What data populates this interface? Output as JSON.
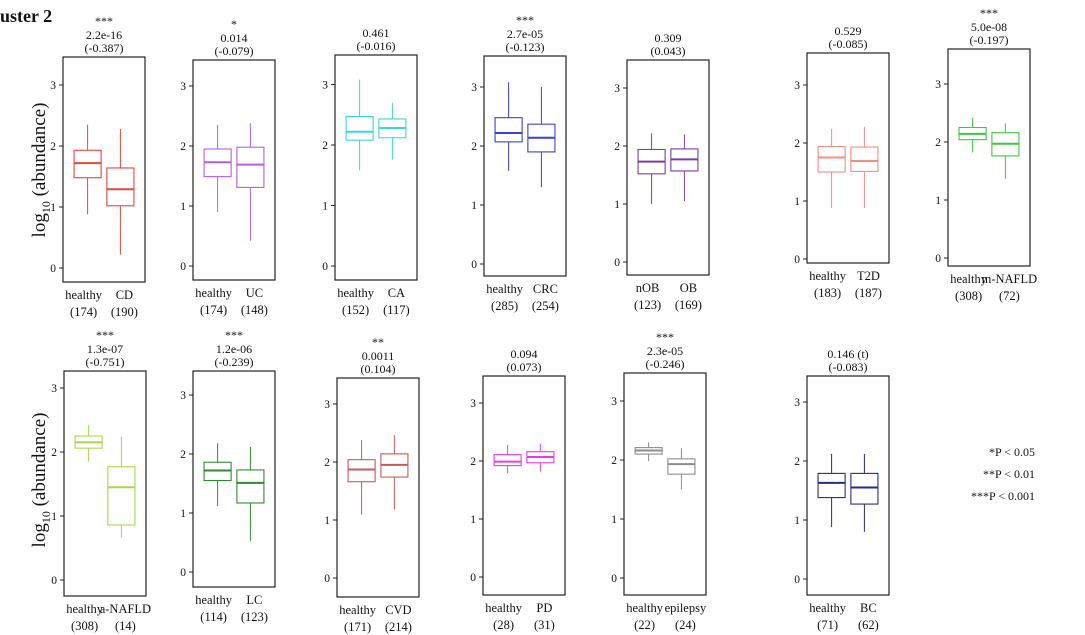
{
  "figure_label": "uster 2",
  "y_label_main": "log",
  "y_label_sub": "10",
  "y_label_rest": " (abundance)",
  "legend": [
    "*P < 0.05",
    "**P < 0.01",
    "***P < 0.001"
  ],
  "chart_data": [
    {
      "type": "box",
      "panel": 1,
      "sig": "***",
      "pvalue": "2.2e-16",
      "effect": "(-0.387)",
      "ylim": [
        -0.1,
        3.5
      ],
      "yticks": [
        0,
        1,
        2,
        3
      ],
      "color": "#e8453c",
      "groups": [
        {
          "name": "healthy",
          "n": "(174)",
          "q1": 1.48,
          "median": 1.72,
          "q3": 1.93,
          "min": 0.88,
          "max": 2.35
        },
        {
          "name": "CD",
          "n": "(190)",
          "q1": 1.02,
          "median": 1.29,
          "q3": 1.64,
          "min": 0.22,
          "max": 2.28
        }
      ]
    },
    {
      "type": "box",
      "panel": 2,
      "sig": "*",
      "pvalue": "0.014",
      "effect": "(-0.079)",
      "ylim": [
        -0.1,
        3.5
      ],
      "yticks": [
        0,
        1,
        2,
        3
      ],
      "color": "#b45ee8",
      "groups": [
        {
          "name": "healthy",
          "n": "(174)",
          "q1": 1.49,
          "median": 1.73,
          "q3": 1.95,
          "min": 0.9,
          "max": 2.35
        },
        {
          "name": "UC",
          "n": "(148)",
          "q1": 1.31,
          "median": 1.69,
          "q3": 1.98,
          "min": 0.42,
          "max": 2.38
        }
      ]
    },
    {
      "type": "box",
      "panel": 3,
      "sig": "",
      "pvalue": "0.461",
      "effect": "(-0.016)",
      "ylim": [
        -0.1,
        3.5
      ],
      "yticks": [
        0,
        1,
        2,
        3
      ],
      "color": "#3cd8d8",
      "groups": [
        {
          "name": "healthy",
          "n": "(152)",
          "q1": 2.08,
          "median": 2.22,
          "q3": 2.47,
          "min": 1.58,
          "max": 3.08
        },
        {
          "name": "CA",
          "n": "(117)",
          "q1": 2.12,
          "median": 2.28,
          "q3": 2.43,
          "min": 1.76,
          "max": 2.7
        }
      ]
    },
    {
      "type": "box",
      "panel": 4,
      "sig": "***",
      "pvalue": "2.7e-05",
      "effect": "(-0.123)",
      "ylim": [
        -0.1,
        3.5
      ],
      "yticks": [
        0,
        1,
        2,
        3
      ],
      "color": "#3b3fd6",
      "groups": [
        {
          "name": "healthy",
          "n": "(285)",
          "q1": 2.07,
          "median": 2.22,
          "q3": 2.48,
          "min": 1.58,
          "max": 3.08
        },
        {
          "name": "CRC",
          "n": "(254)",
          "q1": 1.9,
          "median": 2.14,
          "q3": 2.37,
          "min": 1.3,
          "max": 3.0
        }
      ]
    },
    {
      "type": "box",
      "panel": 5,
      "sig": "",
      "pvalue": "0.309",
      "effect": "(0.043)",
      "ylim": [
        -0.1,
        3.5
      ],
      "yticks": [
        0,
        1,
        2,
        3
      ],
      "color": "#7a3fa0",
      "groups": [
        {
          "name": "nOB",
          "n": "(123)",
          "q1": 1.52,
          "median": 1.73,
          "q3": 1.94,
          "min": 1.0,
          "max": 2.22
        },
        {
          "name": "OB",
          "n": "(169)",
          "q1": 1.57,
          "median": 1.77,
          "q3": 1.95,
          "min": 1.05,
          "max": 2.2
        }
      ]
    },
    {
      "type": "box",
      "panel": 6,
      "sig": "",
      "pvalue": "0.529",
      "effect": "(-0.085)",
      "ylim": [
        -0.1,
        3.5
      ],
      "yticks": [
        0,
        1,
        2,
        3
      ],
      "color": "#f09080",
      "groups": [
        {
          "name": "healthy",
          "n": "(183)",
          "q1": 1.5,
          "median": 1.75,
          "q3": 1.94,
          "min": 0.88,
          "max": 2.24
        },
        {
          "name": "T2D",
          "n": "(187)",
          "q1": 1.51,
          "median": 1.69,
          "q3": 1.93,
          "min": 0.88,
          "max": 2.28
        }
      ]
    },
    {
      "type": "box",
      "panel": 7,
      "sig": "***",
      "pvalue": "5.0e-08",
      "effect": "(-0.197)",
      "ylim": [
        -0.1,
        3.5
      ],
      "yticks": [
        0,
        1,
        2,
        3
      ],
      "color": "#3cc83c",
      "groups": [
        {
          "name": "healthy",
          "n": "(308)",
          "q1": 2.04,
          "median": 2.14,
          "q3": 2.25,
          "min": 1.82,
          "max": 2.42
        },
        {
          "name": "m-NAFLD",
          "n": "(72)",
          "q1": 1.76,
          "median": 1.97,
          "q3": 2.16,
          "min": 1.37,
          "max": 2.32
        }
      ]
    },
    {
      "type": "box",
      "panel": 8,
      "sig": "***",
      "pvalue": "1.3e-07",
      "effect": "(-0.751)",
      "ylim": [
        -0.1,
        3.5
      ],
      "yticks": [
        0,
        1,
        2,
        3
      ],
      "color": "#a8d84a",
      "groups": [
        {
          "name": "healthy",
          "n": "(308)",
          "q1": 2.06,
          "median": 2.15,
          "q3": 2.25,
          "min": 1.85,
          "max": 2.42
        },
        {
          "name": "a-NAFLD",
          "n": "(14)",
          "q1": 0.86,
          "median": 1.45,
          "q3": 1.77,
          "min": 0.66,
          "max": 2.24
        }
      ]
    },
    {
      "type": "box",
      "panel": 9,
      "sig": "***",
      "pvalue": "1.2e-06",
      "effect": "(-0.239)",
      "ylim": [
        -0.1,
        3.5
      ],
      "yticks": [
        0,
        1,
        2,
        3
      ],
      "color": "#2e8b2e",
      "groups": [
        {
          "name": "healthy",
          "n": "(114)",
          "q1": 1.55,
          "median": 1.72,
          "q3": 1.86,
          "min": 1.12,
          "max": 2.18
        },
        {
          "name": "LC",
          "n": "(123)",
          "q1": 1.17,
          "median": 1.51,
          "q3": 1.73,
          "min": 0.53,
          "max": 2.12
        }
      ]
    },
    {
      "type": "box",
      "panel": 10,
      "sig": "**",
      "pvalue": "0.0011",
      "effect": "(0.104)",
      "ylim": [
        -0.1,
        3.5
      ],
      "yticks": [
        0,
        1,
        2,
        3
      ],
      "color": "#c85a5a",
      "groups": [
        {
          "name": "healthy",
          "n": "(171)",
          "q1": 1.66,
          "median": 1.87,
          "q3": 2.04,
          "min": 1.09,
          "max": 2.38
        },
        {
          "name": "CVD",
          "n": "(214)",
          "q1": 1.74,
          "median": 1.95,
          "q3": 2.14,
          "min": 1.18,
          "max": 2.46
        }
      ]
    },
    {
      "type": "box",
      "panel": 11,
      "sig": "",
      "pvalue": "0.094",
      "effect": "(0.073)",
      "ylim": [
        -0.1,
        3.5
      ],
      "yticks": [
        0,
        1,
        2,
        3
      ],
      "color": "#e83ce0",
      "groups": [
        {
          "name": "healthy",
          "n": "(28)",
          "q1": 1.92,
          "median": 1.99,
          "q3": 2.11,
          "min": 1.79,
          "max": 2.28
        },
        {
          "name": "PD",
          "n": "(31)",
          "q1": 1.97,
          "median": 2.07,
          "q3": 2.16,
          "min": 1.82,
          "max": 2.3
        }
      ]
    },
    {
      "type": "box",
      "panel": 12,
      "sig": "***",
      "pvalue": "2.3e-05",
      "effect": "(-0.246)",
      "ylim": [
        -0.1,
        3.5
      ],
      "yticks": [
        0,
        1,
        2,
        3
      ],
      "color": "#8c8c8c",
      "groups": [
        {
          "name": "healthy",
          "n": "(22)",
          "q1": 2.1,
          "median": 2.16,
          "q3": 2.21,
          "min": 1.98,
          "max": 2.3
        },
        {
          "name": "epilepsy",
          "n": "(24)",
          "q1": 1.76,
          "median": 1.93,
          "q3": 2.02,
          "min": 1.5,
          "max": 2.2
        }
      ]
    },
    {
      "type": "box",
      "panel": 13,
      "sig": "",
      "pvalue": "0.146 (t)",
      "effect": "(-0.083)",
      "ylim": [
        -0.1,
        3.5
      ],
      "yticks": [
        0,
        1,
        2,
        3
      ],
      "color": "#2a2a8a",
      "groups": [
        {
          "name": "healthy",
          "n": "(71)",
          "q1": 1.38,
          "median": 1.63,
          "q3": 1.79,
          "min": 0.88,
          "max": 2.12
        },
        {
          "name": "BC",
          "n": "(62)",
          "q1": 1.27,
          "median": 1.55,
          "q3": 1.79,
          "min": 0.8,
          "max": 2.12
        }
      ]
    }
  ]
}
